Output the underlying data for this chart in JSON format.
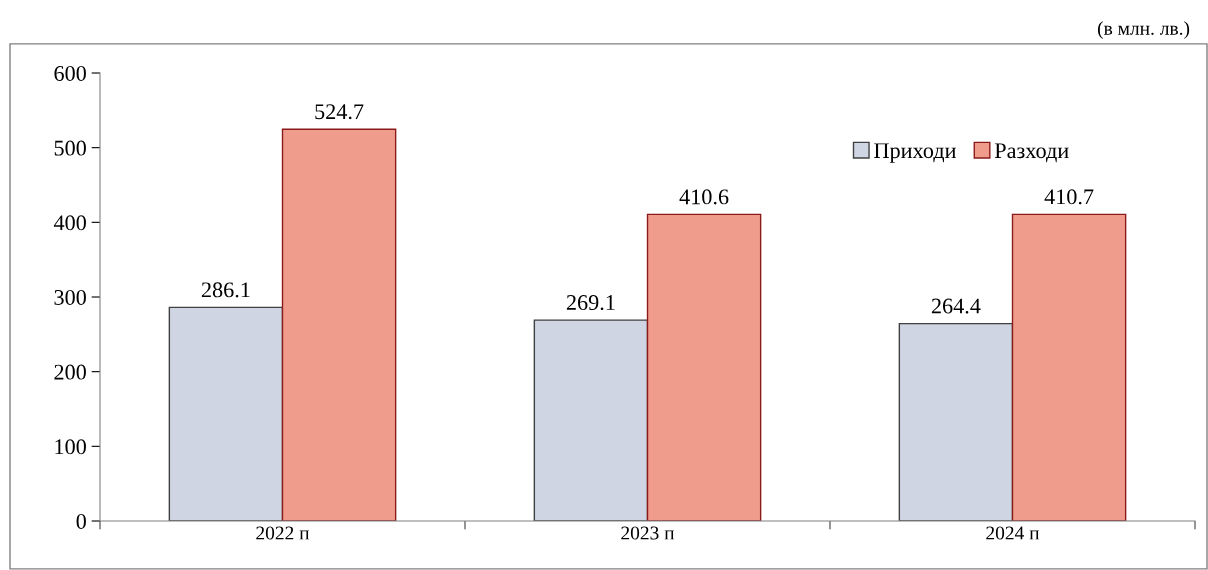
{
  "chart_data": {
    "type": "bar",
    "categories": [
      "2022 п",
      "2023 п",
      "2024 п"
    ],
    "series": [
      {
        "name": "Приходи",
        "color": "#cfd5e3",
        "values": [
          286.1,
          269.1,
          264.4
        ]
      },
      {
        "name": "Разходи",
        "color": "#f09c8c",
        "values": [
          524.7,
          410.6,
          410.7
        ]
      }
    ],
    "ylim": [
      0,
      600
    ],
    "yticks": [
      0,
      100,
      200,
      300,
      400,
      500,
      600
    ],
    "grid": false,
    "legend": "top right",
    "data_labels": true,
    "annotations": [
      "(в млн. лв.)"
    ]
  }
}
